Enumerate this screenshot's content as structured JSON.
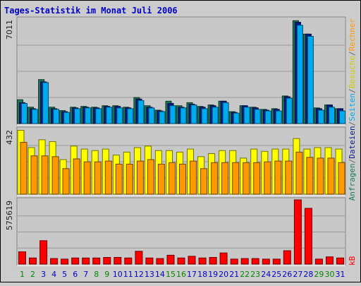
{
  "chart_data": {
    "type": "bar",
    "title": "Tages-Statistik im Monat Juli 2006",
    "categories": [
      "1",
      "2",
      "3",
      "4",
      "5",
      "6",
      "7",
      "8",
      "9",
      "10",
      "11",
      "12",
      "13",
      "14",
      "15",
      "16",
      "17",
      "18",
      "19",
      "20",
      "21",
      "22",
      "23",
      "24",
      "25",
      "26",
      "27",
      "28",
      "29",
      "30",
      "31"
    ],
    "weekend_days": [
      "1",
      "2",
      "8",
      "9",
      "15",
      "16",
      "22",
      "23",
      "29",
      "30"
    ],
    "panels": [
      {
        "id": "top",
        "ymax_label": "7011",
        "ymax": 7011,
        "series": [
          {
            "name": "Anfragen",
            "color": "#1a7a55",
            "values": [
              1600,
              1100,
              2950,
              1100,
              870,
              1100,
              1150,
              1100,
              1200,
              1200,
              1100,
              1750,
              1200,
              900,
              1500,
              1200,
              1400,
              1150,
              1250,
              1500,
              800,
              1200,
              1100,
              950,
              1000,
              1850,
              6900,
              6000,
              1050,
              1250,
              1000
            ]
          },
          {
            "name": "Dateien",
            "color": "#0a1a8a",
            "values": [
              1400,
              1000,
              2800,
              1000,
              800,
              1050,
              1100,
              1050,
              1150,
              1150,
              1050,
              1650,
              1100,
              850,
              1350,
              1100,
              1300,
              1100,
              1200,
              1500,
              750,
              1200,
              1050,
              900,
              950,
              1800,
              6800,
              6000,
              1000,
              1250,
              1000
            ]
          },
          {
            "name": "Seiten",
            "color": "#00aaee",
            "values": [
              1350,
              950,
              2750,
              950,
              750,
              1000,
              1050,
              1000,
              1100,
              1050,
              1000,
              1550,
              1050,
              800,
              1200,
              1050,
              1250,
              1000,
              1100,
              1400,
              700,
              1100,
              950,
              850,
              850,
              1700,
              6600,
              5850,
              900,
              1100,
              850
            ]
          }
        ]
      },
      {
        "id": "middle",
        "ymax_label": "432",
        "ymax": 432,
        "series": [
          {
            "name": "Besuche",
            "color": "#ffff00",
            "values": [
              425,
              310,
              362,
              350,
              230,
              320,
              300,
              290,
              300,
              260,
              280,
              310,
              320,
              290,
              290,
              280,
              300,
              250,
              270,
              290,
              290,
              240,
              300,
              285,
              300,
              300,
              370,
              300,
              310,
              310,
              300
            ]
          },
          {
            "name": "Rechner",
            "color": "#ff9900",
            "values": [
              345,
              255,
              255,
              250,
              170,
              235,
              215,
              215,
              220,
              200,
              200,
              220,
              230,
              200,
              210,
              200,
              220,
              170,
              210,
              210,
              210,
              210,
              210,
              215,
              220,
              220,
              280,
              245,
              240,
              240,
              210
            ]
          }
        ]
      },
      {
        "id": "bottom",
        "ymax_label": "575619",
        "ymax": 575619,
        "series": [
          {
            "name": "kB",
            "color": "#ff0000",
            "values": [
              110000,
              55000,
              210000,
              50000,
              45000,
              55000,
              55000,
              55000,
              60000,
              60000,
              55000,
              115000,
              55000,
              50000,
              80000,
              55000,
              70000,
              55000,
              60000,
              100000,
              45000,
              50000,
              50000,
              45000,
              45000,
              120000,
              575619,
              500000,
              45000,
              65000,
              55000
            ]
          }
        ]
      }
    ],
    "side_labels": {
      "top": [
        {
          "text": "Anfragen",
          "color": "#1a7a55"
        },
        {
          "text": "/",
          "color": "#666666"
        },
        {
          "text": "Dateien",
          "color": "#0a1a8a"
        },
        {
          "text": "/",
          "color": "#666666"
        },
        {
          "text": "Seiten",
          "color": "#00aaee"
        },
        {
          "text": "/",
          "color": "#666666"
        },
        {
          "text": "Besuche",
          "color": "#cccc00"
        },
        {
          "text": "/",
          "color": "#666666"
        },
        {
          "text": "Rechner",
          "color": "#ff9900"
        }
      ],
      "bottom": [
        {
          "text": "kB",
          "color": "#ff0000"
        }
      ]
    },
    "colors": {
      "weekday_label": "#0000cc",
      "weekend_label": "#008800",
      "grid": "#999999",
      "panel_bg": "#c8c8c8"
    },
    "grid": true
  }
}
